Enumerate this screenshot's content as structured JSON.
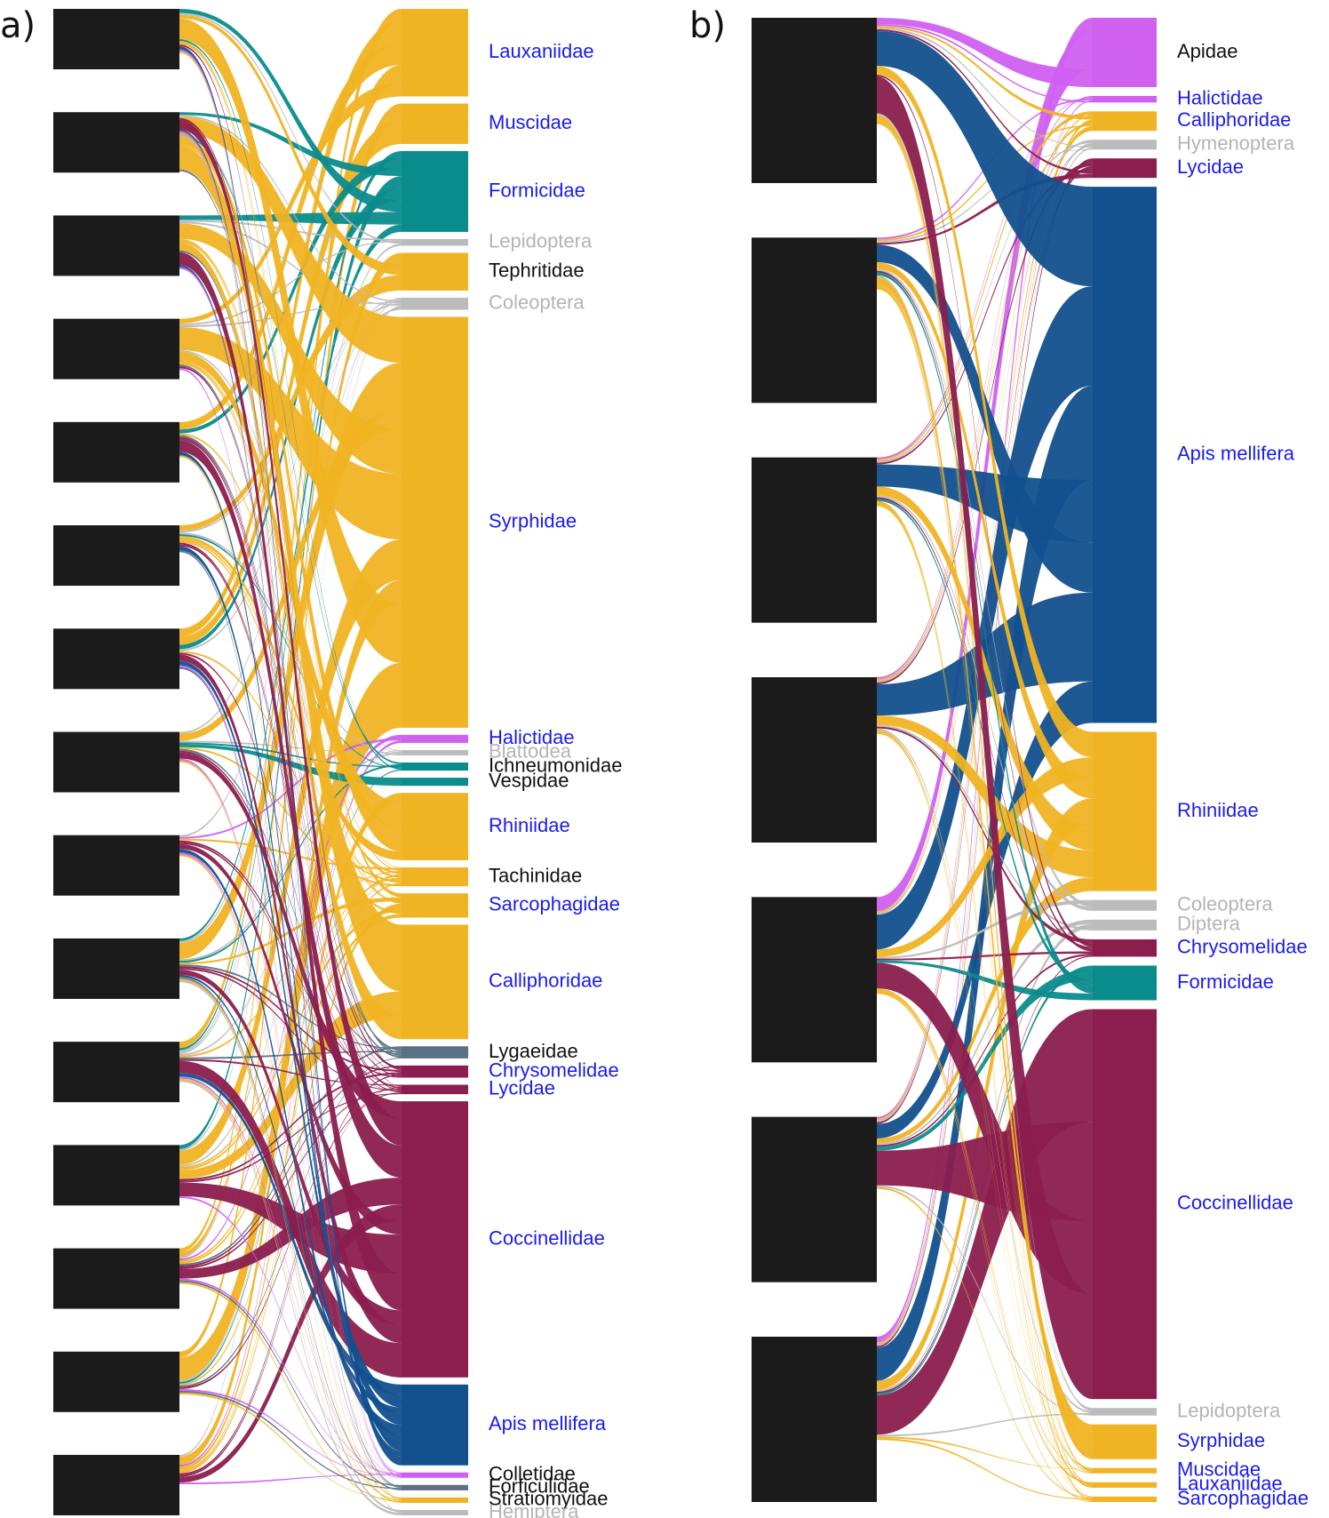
{
  "colors": {
    "black": "#1b1b1b",
    "label_blue": "#1b1bf0",
    "label_black": "#111111",
    "label_grey": "#b4b4b4",
    "diptera": "#f0b323",
    "formicidae_teal": "#0b8c8c",
    "apis_blue": "#12508e",
    "coleoptera_maroon": "#8b1e4e",
    "bee_purple": "#d060f0",
    "grey": "#bbbbbb",
    "slate": "#5a7085"
  },
  "panels": [
    {
      "letter": "a)",
      "plants": 15,
      "insects": [
        {
          "name": "Lauxaniidae",
          "label_color": "blue",
          "color": "diptera",
          "size": 65
        },
        {
          "name": "Muscidae",
          "label_color": "blue",
          "color": "diptera",
          "size": 30
        },
        {
          "name": "Formicidae",
          "label_color": "blue",
          "color": "formicidae_teal",
          "size": 60
        },
        {
          "name": "Lepidoptera",
          "label_color": "grey",
          "color": "grey",
          "size": 5
        },
        {
          "name": "Tephritidae",
          "label_color": "black",
          "color": "diptera",
          "size": 28
        },
        {
          "name": "Coleoptera",
          "label_color": "grey",
          "color": "grey",
          "size": 9
        },
        {
          "name": "Syrphidae",
          "label_color": "blue",
          "color": "diptera",
          "size": 305
        },
        {
          "name": "Halictidae",
          "label_color": "blue",
          "color": "bee_purple",
          "size": 6
        },
        {
          "name": "Blattodea",
          "label_color": "grey",
          "color": "grey",
          "size": 4
        },
        {
          "name": "Ichneumonidae",
          "label_color": "black",
          "color": "formicidae_teal",
          "size": 6
        },
        {
          "name": "Vespidae",
          "label_color": "black",
          "color": "formicidae_teal",
          "size": 6
        },
        {
          "name": "Rhiniidae",
          "label_color": "blue",
          "color": "diptera",
          "size": 50
        },
        {
          "name": "Tachinidae",
          "label_color": "black",
          "color": "diptera",
          "size": 14
        },
        {
          "name": "Sarcophagidae",
          "label_color": "blue",
          "color": "diptera",
          "size": 18
        },
        {
          "name": "Calliphoridae",
          "label_color": "blue",
          "color": "diptera",
          "size": 85
        },
        {
          "name": "Lygaeidae",
          "label_color": "black",
          "color": "slate",
          "size": 9
        },
        {
          "name": "Chrysomelidae",
          "label_color": "blue",
          "color": "coleoptera_maroon",
          "size": 9
        },
        {
          "name": "Lycidae",
          "label_color": "blue",
          "color": "coleoptera_maroon",
          "size": 7
        },
        {
          "name": "Coccinellidae",
          "label_color": "blue",
          "color": "coleoptera_maroon",
          "size": 205
        },
        {
          "name": "Apis mellifera",
          "label_color": "blue",
          "color": "apis_blue",
          "size": 60
        },
        {
          "name": "Colletidae",
          "label_color": "black",
          "color": "bee_purple",
          "size": 4
        },
        {
          "name": "Forficulidae",
          "label_color": "black",
          "color": "slate",
          "size": 4
        },
        {
          "name": "Stratiomyidae",
          "label_color": "black",
          "color": "diptera",
          "size": 4
        },
        {
          "name": "Hemiptera",
          "label_color": "grey",
          "color": "grey",
          "size": 4
        }
      ]
    },
    {
      "letter": "b)",
      "plants": 7,
      "insects": [
        {
          "name": "Apidae",
          "label_color": "black",
          "color": "bee_purple",
          "size": 64
        },
        {
          "name": "Halictidae",
          "label_color": "blue",
          "color": "bee_purple",
          "size": 6
        },
        {
          "name": "Calliphoridae",
          "label_color": "blue",
          "color": "diptera",
          "size": 18
        },
        {
          "name": "Hymenoptera",
          "label_color": "grey",
          "color": "grey",
          "size": 9
        },
        {
          "name": "Lycidae",
          "label_color": "blue",
          "color": "coleoptera_maroon",
          "size": 18
        },
        {
          "name": "Apis mellifera",
          "label_color": "blue",
          "color": "apis_blue",
          "size": 495
        },
        {
          "name": "Rhiniidae",
          "label_color": "blue",
          "color": "diptera",
          "size": 147
        },
        {
          "name": "Coleoptera",
          "label_color": "grey",
          "color": "grey",
          "size": 10
        },
        {
          "name": "Diptera",
          "label_color": "grey",
          "color": "grey",
          "size": 10
        },
        {
          "name": "Chrysomelidae",
          "label_color": "blue",
          "color": "coleoptera_maroon",
          "size": 16
        },
        {
          "name": "Formicidae",
          "label_color": "blue",
          "color": "formicidae_teal",
          "size": 32
        },
        {
          "name": "Coccinellidae",
          "label_color": "blue",
          "color": "coleoptera_maroon",
          "size": 360
        },
        {
          "name": "Lepidoptera",
          "label_color": "grey",
          "color": "grey",
          "size": 7
        },
        {
          "name": "Syrphidae",
          "label_color": "blue",
          "color": "diptera",
          "size": 32
        },
        {
          "name": "Muscidae",
          "label_color": "blue",
          "color": "diptera",
          "size": 5
        },
        {
          "name": "Lauxaniidae",
          "label_color": "blue",
          "color": "diptera",
          "size": 5
        },
        {
          "name": "Sarcophagidae",
          "label_color": "blue",
          "color": "diptera",
          "size": 5
        }
      ]
    }
  ]
}
